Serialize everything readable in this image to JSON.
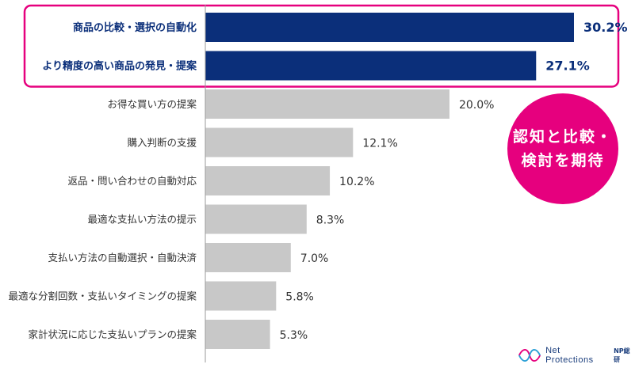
{
  "chart_data": {
    "type": "bar",
    "orientation": "horizontal",
    "categories": [
      "商品の比較・選択の自動化",
      "より精度の高い商品の発見・提案",
      "お得な買い方の提案",
      "購入判断の支援",
      "返品・問い合わせの自動対応",
      "最適な支払い方法の提示",
      "支払い方法の自動選択・自動決済",
      "最適な分割回数・支払いタイミングの提案",
      "家計状況に応じた支払いプランの提案"
    ],
    "values": [
      30.2,
      27.1,
      20.0,
      12.1,
      10.2,
      8.3,
      7.0,
      5.8,
      5.3
    ],
    "value_labels": [
      "30.2%",
      "27.1%",
      "20.0%",
      "12.1%",
      "10.2%",
      "8.3%",
      "7.0%",
      "5.8%",
      "5.3%"
    ],
    "highlighted_count": 2,
    "colors": {
      "highlight": "#0b2f7a",
      "normal": "#c8c8c8",
      "frame": "#e6007e"
    },
    "xlim": [
      0,
      32
    ],
    "grid": false,
    "legend": "none"
  },
  "callout": {
    "line1": "認知と比較・",
    "line2": "検討を期待"
  },
  "logo": {
    "text": "Net Protections",
    "sub": "NP総研",
    "icon": "infinity-wave-icon"
  }
}
